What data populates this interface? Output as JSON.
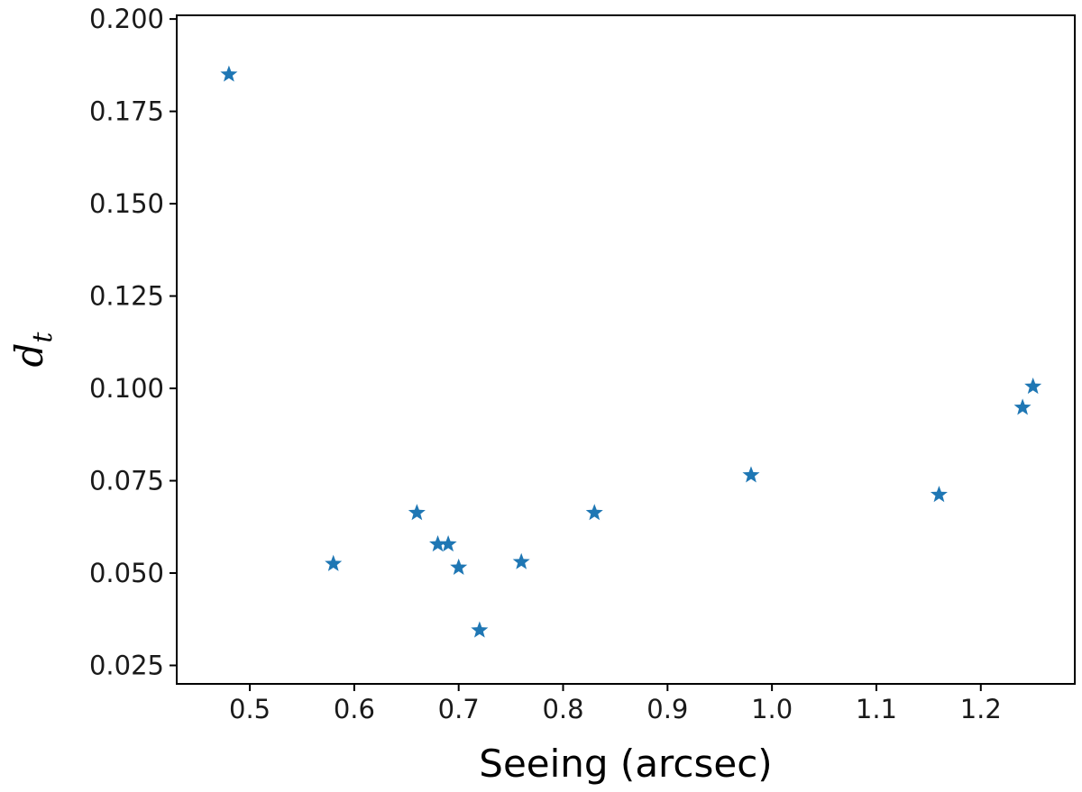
{
  "chart_data": {
    "type": "scatter",
    "title": "",
    "xlabel": "Seeing (arcsec)",
    "ylabel": "d",
    "ylabel_subscript": "t",
    "xlim": [
      0.43,
      1.29
    ],
    "ylim": [
      0.02,
      0.201
    ],
    "x_ticks": [
      0.5,
      0.6,
      0.7,
      0.8,
      0.9,
      1.0,
      1.1,
      1.2
    ],
    "x_tick_labels": [
      "0.5",
      "0.6",
      "0.7",
      "0.8",
      "0.9",
      "1.0",
      "1.1",
      "1.2"
    ],
    "y_ticks": [
      0.025,
      0.05,
      0.075,
      0.1,
      0.125,
      0.15,
      0.175,
      0.2
    ],
    "y_tick_labels": [
      "0.025",
      "0.050",
      "0.075",
      "0.100",
      "0.125",
      "0.150",
      "0.175",
      "0.200"
    ],
    "marker": "star",
    "color": "#1f77b4",
    "grid": false,
    "points": [
      {
        "x": 0.48,
        "y": 0.185
      },
      {
        "x": 0.58,
        "y": 0.0525
      },
      {
        "x": 0.66,
        "y": 0.0663
      },
      {
        "x": 0.68,
        "y": 0.0578
      },
      {
        "x": 0.69,
        "y": 0.0578
      },
      {
        "x": 0.7,
        "y": 0.0515
      },
      {
        "x": 0.72,
        "y": 0.0345
      },
      {
        "x": 0.76,
        "y": 0.053
      },
      {
        "x": 0.83,
        "y": 0.0663
      },
      {
        "x": 0.98,
        "y": 0.0765
      },
      {
        "x": 1.16,
        "y": 0.0712
      },
      {
        "x": 1.24,
        "y": 0.0948
      },
      {
        "x": 1.25,
        "y": 0.1005
      }
    ]
  }
}
